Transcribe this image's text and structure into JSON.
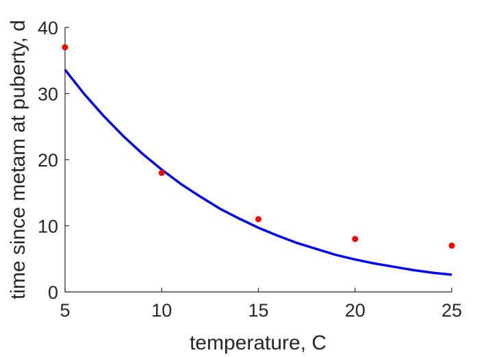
{
  "chart_data": {
    "type": "scatter",
    "xlabel": "temperature, C",
    "ylabel": "time since metam at puberty, d",
    "xlim": [
      5,
      25
    ],
    "ylim": [
      0,
      40
    ],
    "xticks": [
      5,
      10,
      15,
      20,
      25
    ],
    "yticks": [
      0,
      10,
      20,
      30,
      40
    ],
    "grid": false,
    "series": [
      {
        "kind": "points",
        "color": "#ff0000",
        "x": [
          5,
          10,
          15,
          20,
          25
        ],
        "y": [
          37,
          18,
          11,
          8,
          7
        ]
      },
      {
        "kind": "line",
        "color": "#0000ff",
        "x": [
          5,
          6,
          7,
          8,
          9,
          10,
          11,
          12,
          13,
          14,
          15,
          16,
          17,
          18,
          19,
          20,
          21,
          22,
          23,
          24,
          25
        ],
        "y": [
          33.6,
          29.9,
          26.6,
          23.6,
          20.9,
          18.5,
          16.3,
          14.4,
          12.6,
          11.1,
          9.7,
          8.5,
          7.4,
          6.5,
          5.6,
          4.9,
          4.3,
          3.8,
          3.3,
          2.9,
          2.6
        ]
      }
    ]
  }
}
